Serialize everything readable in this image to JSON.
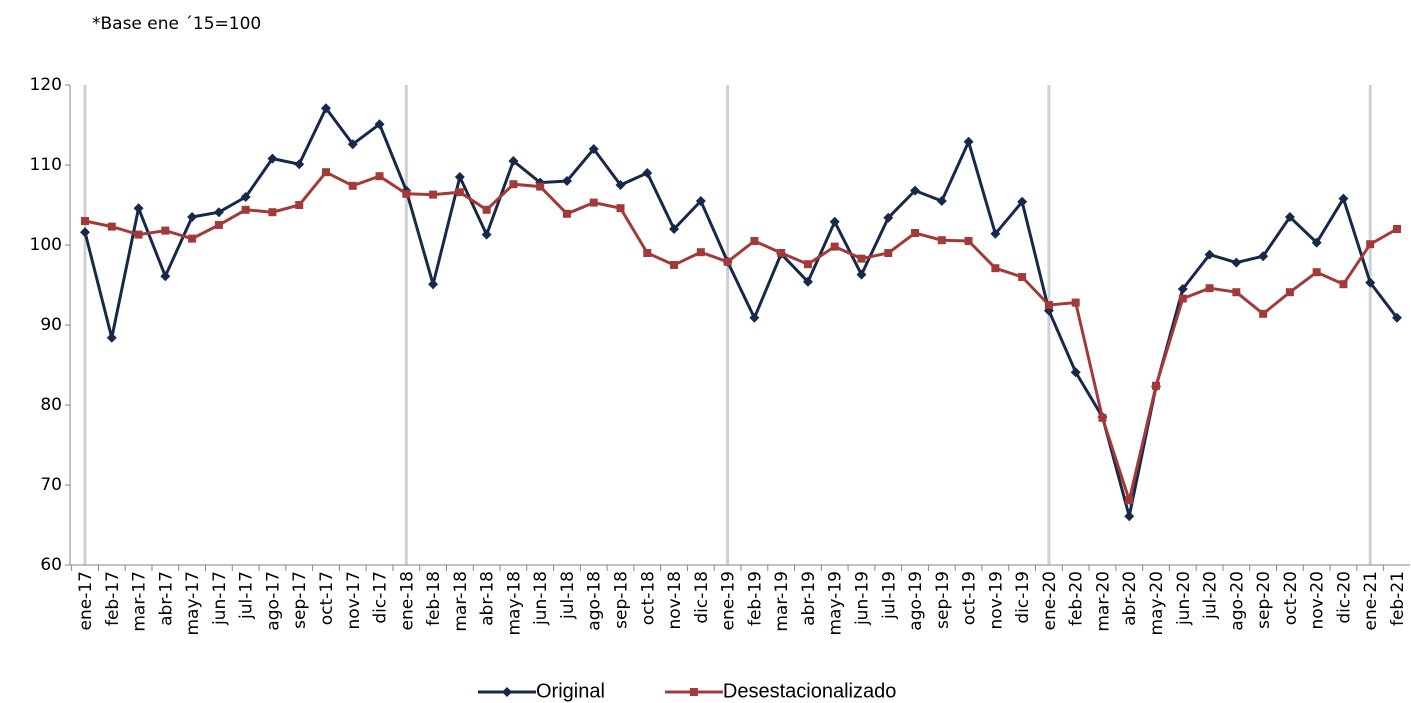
{
  "chart_data": {
    "type": "line",
    "subtitle": "*Base ene ´15=100",
    "categories": [
      "ene-17",
      "feb-17",
      "mar-17",
      "abr-17",
      "may-17",
      "jun-17",
      "jul-17",
      "ago-17",
      "sep-17",
      "oct-17",
      "nov-17",
      "dic-17",
      "ene-18",
      "feb-18",
      "mar-18",
      "abr-18",
      "may-18",
      "jun-18",
      "jul-18",
      "ago-18",
      "sep-18",
      "oct-18",
      "nov-18",
      "dic-18",
      "ene-19",
      "feb-19",
      "mar-19",
      "abr-19",
      "may-19",
      "jun-19",
      "jul-19",
      "ago-19",
      "sep-19",
      "oct-19",
      "nov-19",
      "dic-19",
      "ene-20",
      "feb-20",
      "mar-20",
      "abr-20",
      "may-20",
      "jun-20",
      "jul-20",
      "ago-20",
      "sep-20",
      "oct-20",
      "nov-20",
      "dic-20",
      "ene-21",
      "feb-21"
    ],
    "series": [
      {
        "name": "Original",
        "color": "#17294a",
        "marker": "diamond",
        "values": [
          101.6,
          88.4,
          104.6,
          96.1,
          103.5,
          104.1,
          106,
          110.8,
          110.1,
          117.1,
          112.6,
          115.1,
          106.8,
          95.1,
          108.5,
          101.3,
          110.5,
          107.8,
          108,
          112,
          107.5,
          109,
          102,
          105.5,
          97.9,
          90.9,
          98.9,
          95.4,
          102.9,
          96.3,
          103.4,
          106.8,
          105.5,
          112.9,
          101.4,
          105.4,
          91.8,
          84.1,
          78.5,
          66.1,
          82.3,
          94.5,
          98.8,
          97.8,
          98.6,
          103.5,
          100.3,
          105.8,
          95.3,
          90.9
        ]
      },
      {
        "name": "Desestacionalizado",
        "color": "#a33a3a",
        "marker": "square",
        "values": [
          103,
          102.3,
          101.3,
          101.8,
          100.8,
          102.5,
          104.4,
          104.1,
          105,
          109.1,
          107.4,
          108.6,
          106.4,
          106.3,
          106.6,
          104.4,
          107.6,
          107.3,
          103.9,
          105.3,
          104.6,
          99,
          97.5,
          99.1,
          97.9,
          100.5,
          99,
          97.6,
          99.8,
          98.3,
          99,
          101.5,
          100.6,
          100.5,
          97.1,
          96,
          92.5,
          92.8,
          78.4,
          68.1,
          82.4,
          93.3,
          94.6,
          94.1,
          91.4,
          94.1,
          96.6,
          95.1,
          100.1,
          102
        ]
      }
    ],
    "ylim": [
      60,
      120
    ],
    "yticks": [
      60,
      70,
      80,
      90,
      100,
      110,
      120
    ],
    "grid": false,
    "legend": "bottom"
  }
}
